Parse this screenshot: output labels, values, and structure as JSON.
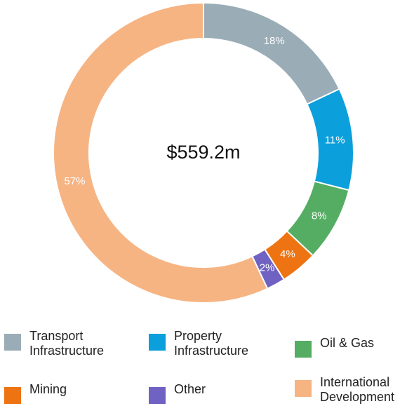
{
  "chart_data": {
    "type": "pie",
    "center_label": "$559.2m",
    "slices": [
      {
        "name": "Transport\nInfrastructure",
        "value": 18,
        "label": "18%",
        "color": "#9aacb6"
      },
      {
        "name": "Property\nInfrastructure",
        "value": 11,
        "label": "11%",
        "color": "#0b9fdc"
      },
      {
        "name": "Oil & Gas",
        "value": 8,
        "label": "8%",
        "color": "#54ad62"
      },
      {
        "name": "Mining",
        "value": 4,
        "label": "4%",
        "color": "#ee7312"
      },
      {
        "name": "Other",
        "value": 2,
        "label": "2%",
        "color": "#7062c2"
      },
      {
        "name": "International\nDevelopment",
        "value": 57,
        "label": "57%",
        "color": "#f6b483"
      }
    ]
  }
}
